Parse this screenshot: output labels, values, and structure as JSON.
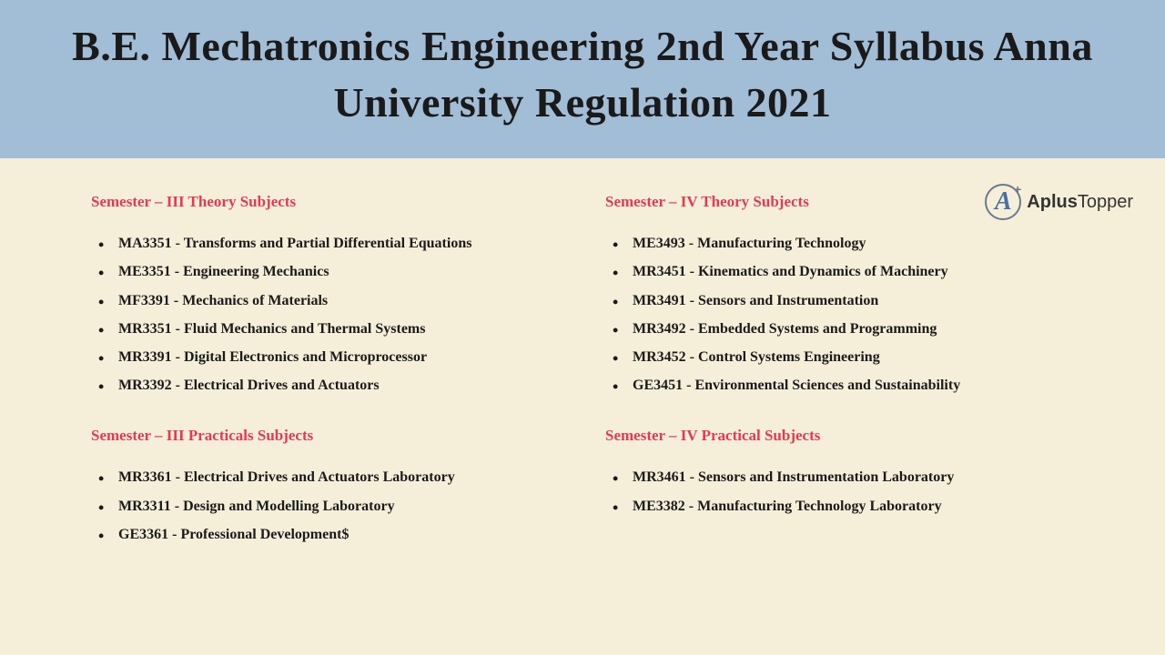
{
  "header": {
    "title": "B.E. Mechatronics Engineering 2nd Year Syllabus Anna University Regulation 2021"
  },
  "colors": {
    "header_bg": "#a2bdd6",
    "body_bg": "#f5efd9",
    "heading_color": "#e63950",
    "text_color": "#1a1a1a"
  },
  "sem3_theory": {
    "heading": "Semester – III Theory Subjects",
    "items": [
      "MA3351 - Transforms and Partial Differential Equations",
      "ME3351 - Engineering Mechanics",
      "MF3391 - Mechanics of Materials",
      "MR3351 - Fluid Mechanics and Thermal Systems",
      "MR3391 - Digital Electronics and Microprocessor",
      "MR3392 - Electrical Drives and Actuators"
    ]
  },
  "sem3_practical": {
    "heading": "Semester – III Practicals Subjects",
    "items": [
      "MR3361 - Electrical Drives and Actuators Laboratory",
      "MR3311 - Design and Modelling Laboratory",
      "GE3361 - Professional Development$"
    ]
  },
  "sem4_theory": {
    "heading": "Semester – IV Theory Subjects",
    "items": [
      "ME3493 - Manufacturing Technology",
      "MR3451 - Kinematics and Dynamics of Machinery",
      "MR3491 - Sensors and Instrumentation",
      "MR3492 - Embedded Systems and Programming",
      "MR3452 - Control Systems Engineering",
      "GE3451 - Environmental Sciences and Sustainability"
    ]
  },
  "sem4_practical": {
    "heading": "Semester – IV Practical Subjects",
    "items": [
      "MR3461 - Sensors and Instrumentation Laboratory",
      "ME3382 - Manufacturing Technology Laboratory"
    ]
  },
  "logo": {
    "brand_bold": "Aplus",
    "brand_light": "Topper",
    "letter": "A",
    "plus": "+"
  }
}
